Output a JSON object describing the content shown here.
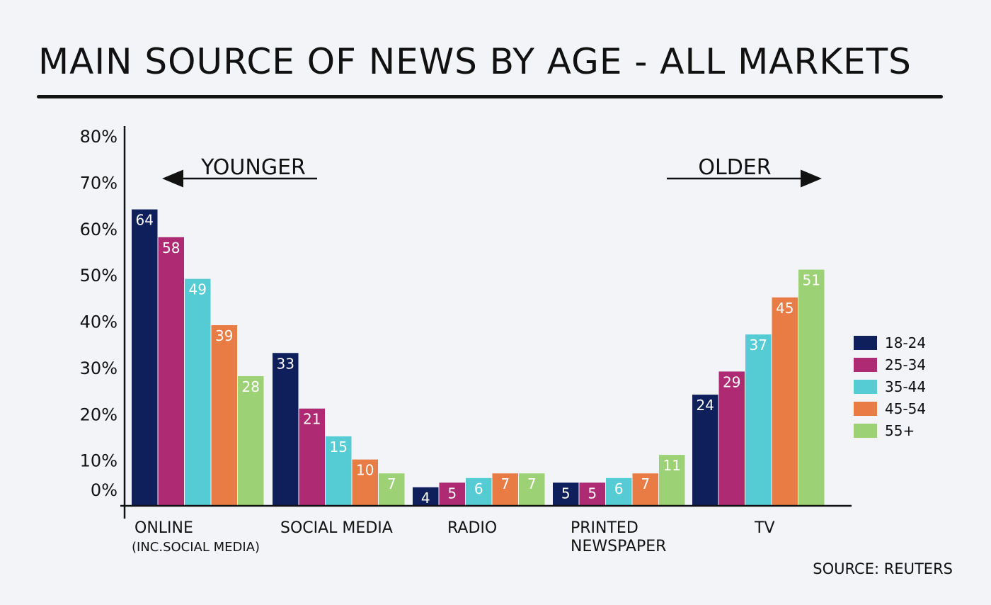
{
  "title": "MAIN SOURCE OF NEWS BY AGE - ALL MARKETS",
  "source": "SOURCE: REUTERS",
  "annotations": {
    "younger": "YOUNGER",
    "older": "OLDER"
  },
  "chart_data": {
    "type": "bar",
    "title": "MAIN SOURCE OF NEWS BY AGE - ALL MARKETS",
    "categories": [
      "ONLINE",
      "SOCIAL MEDIA",
      "RADIO",
      "PRINTED NEWSPAPER",
      "TV"
    ],
    "category_labels": [
      [
        "ONLINE",
        "(INC.SOCIAL MEDIA)"
      ],
      [
        "SOCIAL MEDIA"
      ],
      [
        "RADIO"
      ],
      [
        "PRINTED",
        "NEWSPAPER"
      ],
      [
        "TV"
      ]
    ],
    "series": [
      {
        "name": "18-24",
        "color": "#0e1f5b",
        "values": [
          64,
          33,
          4,
          5,
          24
        ]
      },
      {
        "name": "25-34",
        "color": "#ae2b74",
        "values": [
          58,
          21,
          5,
          5,
          29
        ]
      },
      {
        "name": "35-44",
        "color": "#55cbd3",
        "values": [
          49,
          15,
          6,
          6,
          37
        ]
      },
      {
        "name": "45-54",
        "color": "#e97c45",
        "values": [
          39,
          10,
          7,
          7,
          45
        ]
      },
      {
        "name": "55+",
        "color": "#9dd175",
        "values": [
          28,
          7,
          7,
          11,
          51
        ]
      }
    ],
    "ylim": [
      0,
      80
    ],
    "yticks": [
      0,
      10,
      20,
      30,
      40,
      50,
      60,
      70,
      80
    ],
    "ytick_labels": [
      "0%",
      "10%",
      "20%",
      "30%",
      "40%",
      "50%",
      "60%",
      "70%",
      "80%"
    ],
    "grid": false,
    "legend_position": "right"
  }
}
